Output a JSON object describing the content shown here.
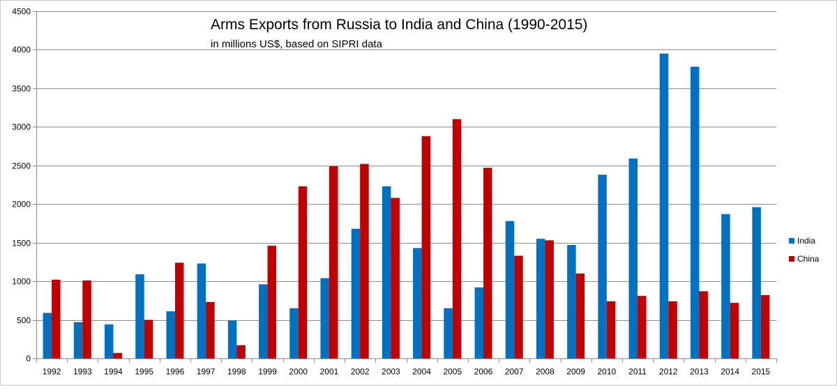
{
  "chart_data": {
    "type": "bar",
    "title": "Arms Exports from Russia to India and China (1990-2015)",
    "subtitle": "in millions US$, based on SIPRI data",
    "xlabel": "",
    "ylabel": "",
    "ylim": [
      0,
      4500
    ],
    "yticks": [
      0,
      500,
      1000,
      1500,
      2000,
      2500,
      3000,
      3500,
      4000,
      4500
    ],
    "grid": true,
    "legend_position": "right",
    "categories": [
      "1992",
      "1993",
      "1994",
      "1995",
      "1996",
      "1997",
      "1998",
      "1999",
      "2000",
      "2001",
      "2002",
      "2003",
      "2004",
      "2005",
      "2006",
      "2007",
      "2008",
      "2009",
      "2010",
      "2011",
      "2012",
      "2013",
      "2014",
      "2015"
    ],
    "series": [
      {
        "name": "India",
        "color": "#0070c0",
        "values": [
          590,
          470,
          440,
          1090,
          610,
          1230,
          490,
          960,
          650,
          1040,
          1680,
          2230,
          1430,
          650,
          920,
          1780,
          1550,
          1470,
          2380,
          2590,
          3950,
          3780,
          1870,
          1960
        ]
      },
      {
        "name": "China",
        "color": "#c00000",
        "values": [
          1020,
          1010,
          70,
          500,
          1240,
          730,
          170,
          1460,
          2230,
          2490,
          2520,
          2080,
          2880,
          3100,
          2470,
          1330,
          1530,
          1100,
          740,
          810,
          740,
          870,
          720,
          820
        ]
      }
    ]
  }
}
